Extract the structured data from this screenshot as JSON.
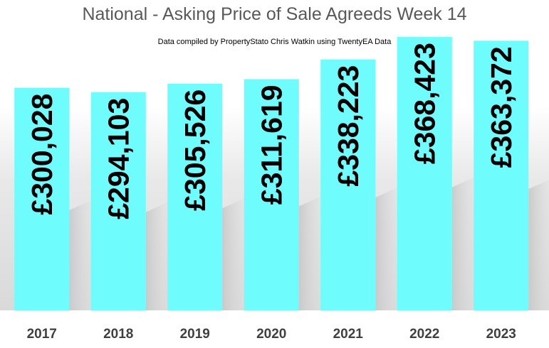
{
  "colors": {
    "bar": "#6ffcfc",
    "label": "#000000",
    "title": "#595959"
  },
  "chart_data": {
    "type": "bar",
    "title": "National - Asking Price of Sale Agreeds  Week 14",
    "subtitle": "Data compiled by PropertyStato Chris Watkin using TwentyEA Data",
    "categories": [
      "2017",
      "2018",
      "2019",
      "2020",
      "2021",
      "2022",
      "2023"
    ],
    "values": [
      300028,
      294103,
      305526,
      311619,
      338223,
      368423,
      363372
    ],
    "value_labels": [
      "£300,028",
      "£294,103",
      "£305,526",
      "£311,619",
      "£338,223",
      "£368,423",
      "£363,372"
    ],
    "xlabel": "",
    "ylabel": "",
    "ylim": [
      0,
      380000
    ],
    "grid": false,
    "legend": "none"
  }
}
